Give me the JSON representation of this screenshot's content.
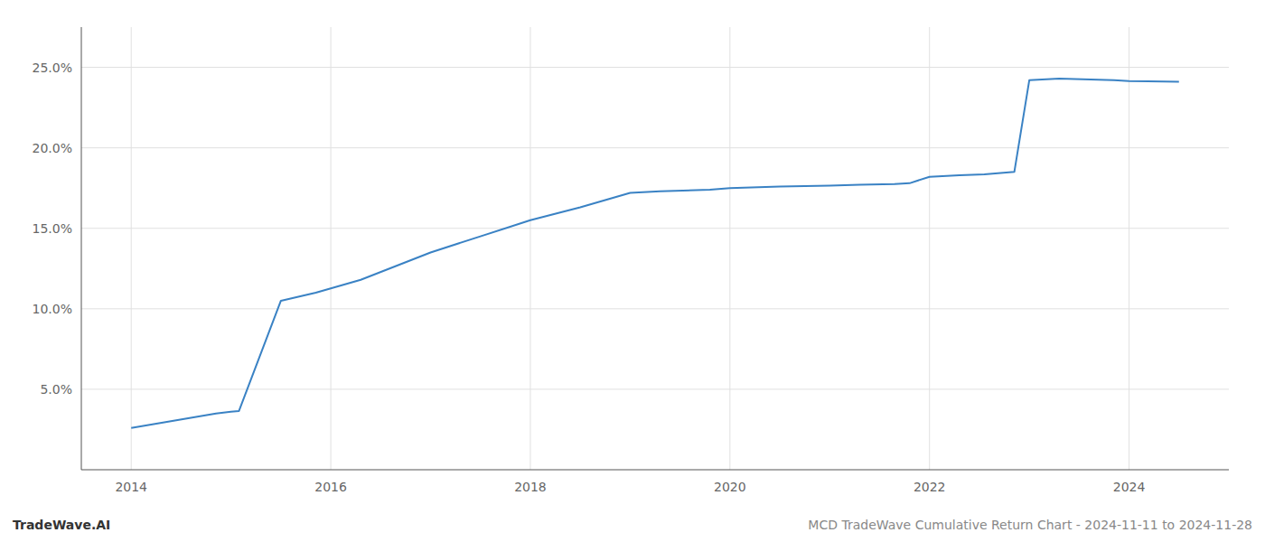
{
  "chart_data": {
    "type": "line",
    "title": "MCD TradeWave Cumulative Return Chart - 2024-11-11 to 2024-11-28",
    "annotations": [
      "TradeWave.AI"
    ],
    "x": [
      2014.0,
      2014.85,
      2015.0,
      2015.08,
      2015.5,
      2015.85,
      2016.3,
      2017.0,
      2017.5,
      2018.0,
      2018.5,
      2019.0,
      2019.3,
      2019.8,
      2020.0,
      2020.5,
      2021.0,
      2021.3,
      2021.65,
      2021.8,
      2022.0,
      2022.3,
      2022.55,
      2022.85,
      2023.0,
      2023.3,
      2023.85,
      2024.0,
      2024.5
    ],
    "values": [
      2.6,
      3.5,
      3.6,
      3.65,
      10.5,
      11.0,
      11.8,
      13.5,
      14.5,
      15.5,
      16.3,
      17.2,
      17.3,
      17.4,
      17.5,
      17.6,
      17.65,
      17.7,
      17.75,
      17.8,
      18.2,
      18.3,
      18.35,
      18.5,
      24.2,
      24.3,
      24.2,
      24.15,
      24.1
    ],
    "color": "#3a82c4",
    "xlim": [
      2013.5,
      2025.0
    ],
    "ylim": [
      0.0,
      27.5
    ],
    "xticks": [
      2014,
      2016,
      2018,
      2020,
      2022,
      2024
    ],
    "yticks": [
      {
        "value": 5.0,
        "label": "5.0%"
      },
      {
        "value": 10.0,
        "label": "10.0%"
      },
      {
        "value": 15.0,
        "label": "15.0%"
      },
      {
        "value": 20.0,
        "label": "20.0%"
      },
      {
        "value": 25.0,
        "label": "25.0%"
      }
    ],
    "grid": true
  }
}
